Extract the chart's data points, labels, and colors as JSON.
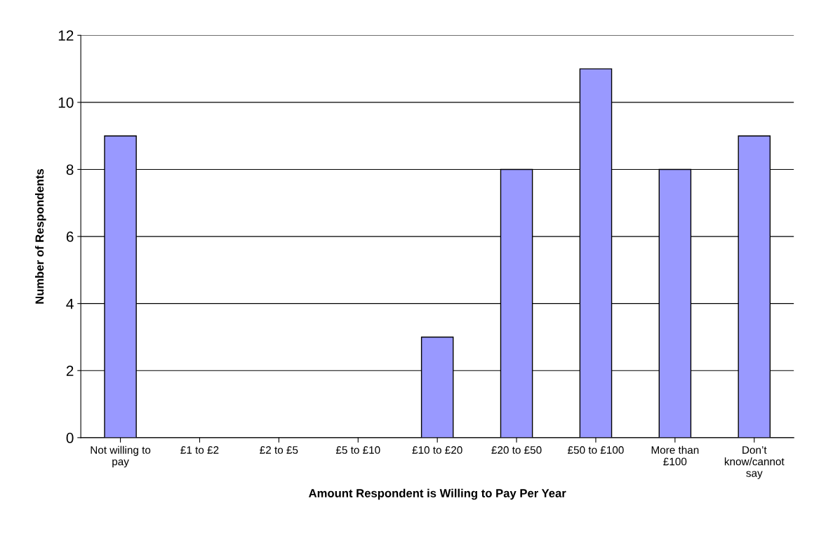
{
  "chart_data": {
    "type": "bar",
    "xlabel": "Amount Respondent is Willing to Pay Per Year",
    "ylabel": "Number of Respondents",
    "categories": [
      "Not willing to\npay",
      "£1 to £2",
      "£2 to £5",
      "£5 to £10",
      "£10 to £20",
      "£20 to £50",
      "£50 to £100",
      "More than\n£100",
      "Don’t\nknow/cannot\nsay"
    ],
    "values": [
      9,
      0,
      0,
      0,
      3,
      8,
      11,
      8,
      9
    ],
    "color": "#9999ff",
    "ylim": [
      0,
      12
    ],
    "yticks": [
      0,
      2,
      4,
      6,
      8,
      10,
      12
    ],
    "grid": "y"
  }
}
